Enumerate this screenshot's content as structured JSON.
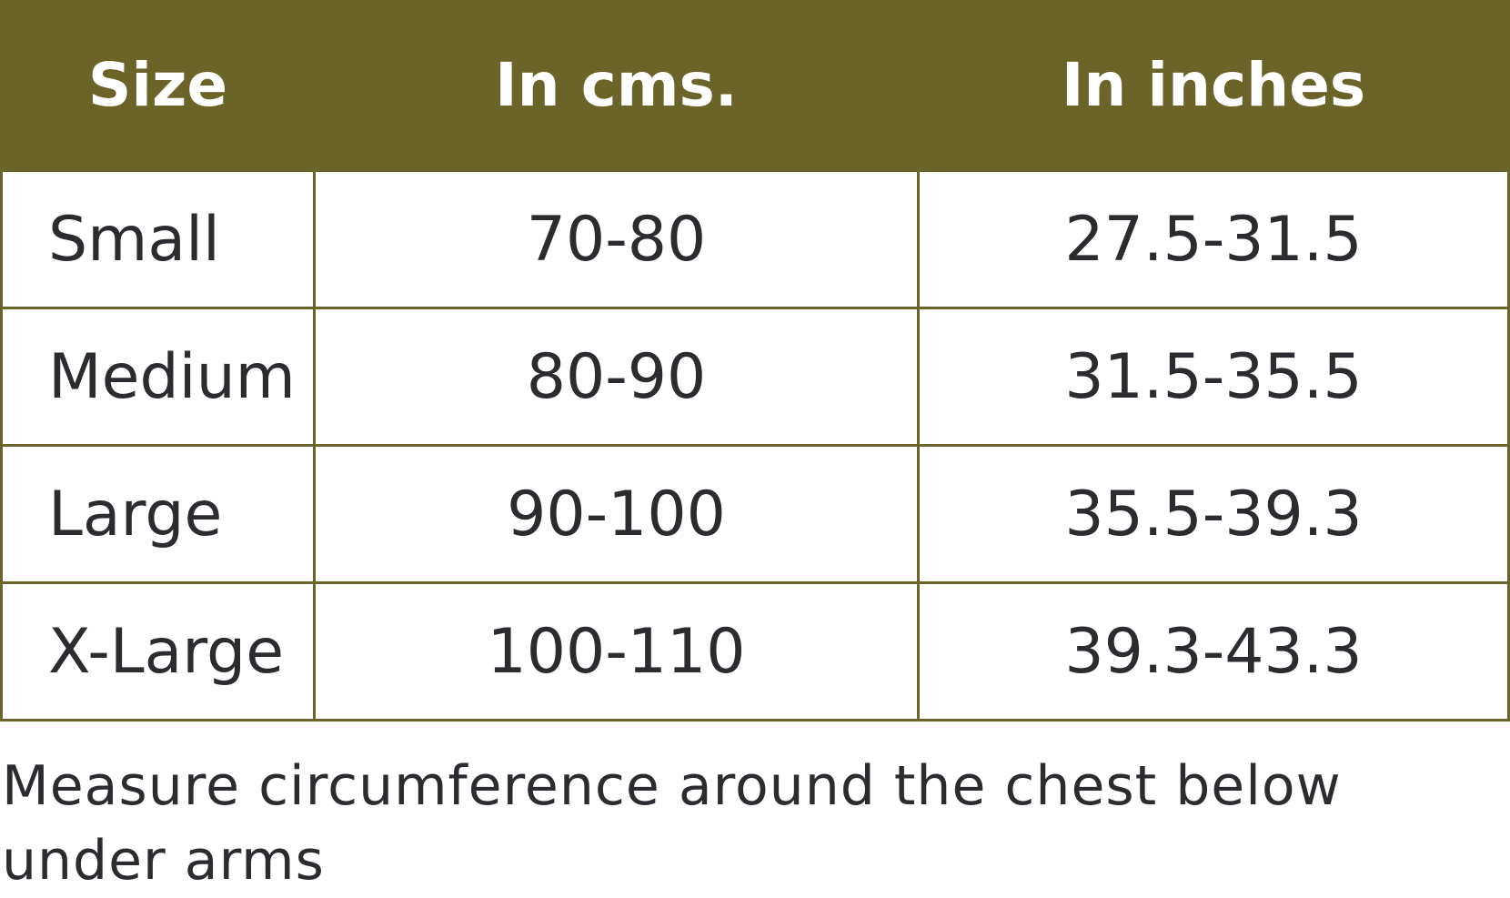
{
  "table": {
    "headers": [
      "Size",
      "In cms.",
      "In inches"
    ],
    "rows": [
      [
        "Small",
        "70-80",
        "27.5-31.5"
      ],
      [
        "Medium",
        "80-90",
        "31.5-35.5"
      ],
      [
        "Large",
        "90-100",
        "35.5-39.3"
      ],
      [
        "X-Large",
        "100-110",
        "39.3-43.3"
      ]
    ]
  },
  "note": "Measure circumference around the chest below under arms"
}
